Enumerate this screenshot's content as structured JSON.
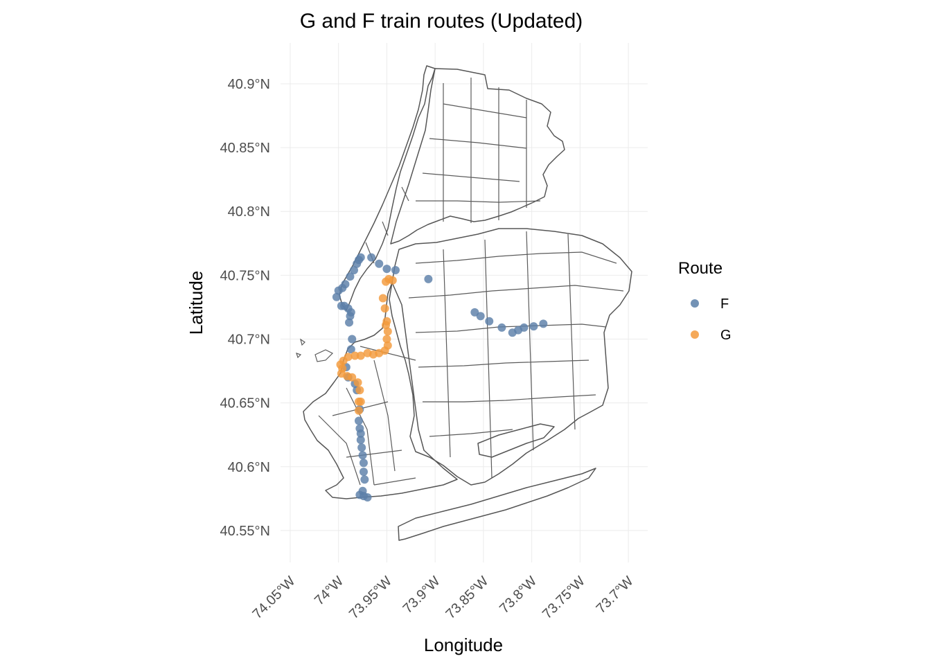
{
  "chart_data": {
    "type": "scatter",
    "title": "G and F train routes (Updated)",
    "xlabel": "Longitude",
    "ylabel": "Latitude",
    "xlim": [
      -74.06,
      -73.68
    ],
    "ylim": [
      40.525,
      40.932
    ],
    "x_ticks": [
      {
        "value": -74.05,
        "label": "74.05°W"
      },
      {
        "value": -74.0,
        "label": "74°W"
      },
      {
        "value": -73.95,
        "label": "73.95°W"
      },
      {
        "value": -73.9,
        "label": "73.9°W"
      },
      {
        "value": -73.85,
        "label": "73.85°W"
      },
      {
        "value": -73.8,
        "label": "73.8°W"
      },
      {
        "value": -73.75,
        "label": "73.75°W"
      },
      {
        "value": -73.7,
        "label": "73.7°W"
      }
    ],
    "y_ticks": [
      {
        "value": 40.55,
        "label": "40.55°N"
      },
      {
        "value": 40.6,
        "label": "40.6°N"
      },
      {
        "value": 40.65,
        "label": "40.65°N"
      },
      {
        "value": 40.7,
        "label": "40.7°N"
      },
      {
        "value": 40.75,
        "label": "40.75°N"
      },
      {
        "value": 40.8,
        "label": "40.8°N"
      },
      {
        "value": 40.85,
        "label": "40.85°N"
      },
      {
        "value": 40.9,
        "label": "40.9°N"
      }
    ],
    "grid": true,
    "legend": {
      "title": "Route",
      "position": "right"
    },
    "series": [
      {
        "name": "F",
        "color": "#5b7fa8",
        "points": [
          [
            -73.97,
            40.576
          ],
          [
            -73.974,
            40.577
          ],
          [
            -73.978,
            40.578
          ],
          [
            -73.975,
            40.581
          ],
          [
            -73.973,
            40.59
          ],
          [
            -73.974,
            40.596
          ],
          [
            -73.974,
            40.603
          ],
          [
            -73.975,
            40.609
          ],
          [
            -73.976,
            40.615
          ],
          [
            -73.977,
            40.621
          ],
          [
            -73.977,
            40.626
          ],
          [
            -73.978,
            40.63
          ],
          [
            -73.979,
            40.636
          ],
          [
            -73.978,
            40.645
          ],
          [
            -73.981,
            40.66
          ],
          [
            -73.983,
            40.665
          ],
          [
            -73.99,
            40.67
          ],
          [
            -73.992,
            40.678
          ],
          [
            -73.987,
            40.692
          ],
          [
            -73.986,
            40.7
          ],
          [
            -73.989,
            40.713
          ],
          [
            -73.988,
            40.718
          ],
          [
            -73.987,
            40.721
          ],
          [
            -73.99,
            40.724
          ],
          [
            -73.994,
            40.726
          ],
          [
            -73.997,
            40.726
          ],
          [
            -74.002,
            40.733
          ],
          [
            -74.0,
            40.738
          ],
          [
            -73.996,
            40.74
          ],
          [
            -73.993,
            40.743
          ],
          [
            -73.988,
            40.749
          ],
          [
            -73.984,
            40.754
          ],
          [
            -73.981,
            40.759
          ],
          [
            -73.979,
            40.762
          ],
          [
            -73.977,
            40.764
          ],
          [
            -73.966,
            40.764
          ],
          [
            -73.958,
            40.759
          ],
          [
            -73.95,
            40.755
          ],
          [
            -73.941,
            40.754
          ],
          [
            -73.907,
            40.747
          ],
          [
            -73.859,
            40.721
          ],
          [
            -73.853,
            40.718
          ],
          [
            -73.844,
            40.714
          ],
          [
            -73.831,
            40.709
          ],
          [
            -73.82,
            40.705
          ],
          [
            -73.814,
            40.707
          ],
          [
            -73.808,
            40.709
          ],
          [
            -73.798,
            40.71
          ],
          [
            -73.788,
            40.712
          ]
        ]
      },
      {
        "name": "G",
        "color": "#f39a3c",
        "points": [
          [
            -73.944,
            40.746
          ],
          [
            -73.948,
            40.747
          ],
          [
            -73.951,
            40.745
          ],
          [
            -73.954,
            40.732
          ],
          [
            -73.952,
            40.724
          ],
          [
            -73.95,
            40.714
          ],
          [
            -73.951,
            40.711
          ],
          [
            -73.949,
            40.706
          ],
          [
            -73.95,
            40.7
          ],
          [
            -73.949,
            40.695
          ],
          [
            -73.952,
            40.691
          ],
          [
            -73.958,
            40.689
          ],
          [
            -73.964,
            40.688
          ],
          [
            -73.97,
            40.689
          ],
          [
            -73.977,
            40.687
          ],
          [
            -73.983,
            40.687
          ],
          [
            -73.99,
            40.686
          ],
          [
            -73.995,
            40.683
          ],
          [
            -73.998,
            40.68
          ],
          [
            -73.996,
            40.677
          ],
          [
            -73.997,
            40.673
          ],
          [
            -73.991,
            40.671
          ],
          [
            -73.986,
            40.67
          ],
          [
            -73.98,
            40.666
          ],
          [
            -73.978,
            40.66
          ],
          [
            -73.979,
            40.651
          ],
          [
            -73.977,
            40.651
          ],
          [
            -73.979,
            40.644
          ]
        ]
      }
    ]
  }
}
